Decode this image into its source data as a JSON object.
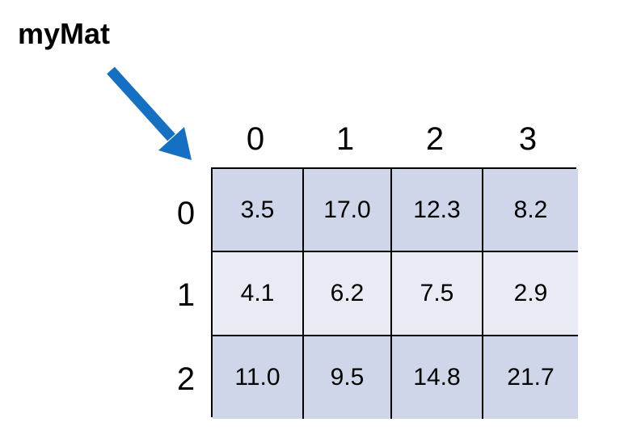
{
  "title": "myMat",
  "colors": {
    "arrow": "#1570C4",
    "row_dark": "#D0D6E9",
    "row_light": "#E8EAF4",
    "border": "#000000"
  },
  "col_indices": [
    "0",
    "1",
    "2",
    "3"
  ],
  "row_indices": [
    "0",
    "1",
    "2"
  ],
  "matrix": [
    [
      "3.5",
      "17.0",
      "12.3",
      "8.2"
    ],
    [
      "4.1",
      "6.2",
      "7.5",
      "2.9"
    ],
    [
      "11.0",
      "9.5",
      "14.8",
      "21.7"
    ]
  ]
}
